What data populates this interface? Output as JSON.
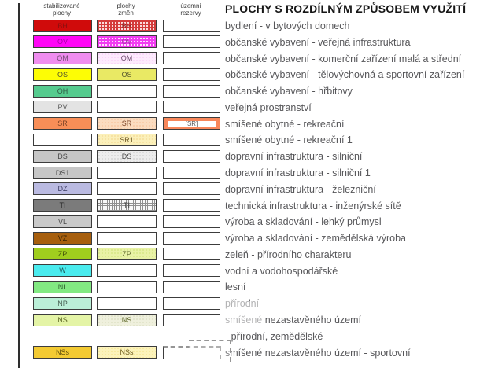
{
  "title": "PLOCHY S ROZDÍLNÝM ZPŮSOBEM VYUŽITÍ",
  "columns": [
    {
      "line1": "stabilizované",
      "line2": "plochy"
    },
    {
      "line1": "plochy",
      "line2": "změn"
    },
    {
      "line1": "územní",
      "line2": "rezervy"
    }
  ],
  "colors": {
    "border": "#3c3c3c",
    "text": "#57575a",
    "title": "#161616"
  },
  "rows": [
    {
      "code": "BH",
      "text": "bydlení - v bytových domech",
      "stable": {
        "fill": "#d00b0b",
        "label": "BH",
        "label_color": "#8b0f0f"
      },
      "change": {
        "kind": "hatch",
        "base": "#fadcdc",
        "accent": "#d43c3c",
        "line": 2,
        "period": 4,
        "label": "BH",
        "label_color": "#7c1d1d"
      },
      "reserve": {
        "kind": "plain"
      }
    },
    {
      "code": "OV",
      "text": "občanské vybavení - veřejná infrastruktura",
      "stable": {
        "fill": "#ff06f6",
        "label": "OV",
        "label_color": "#a800a8"
      },
      "change": {
        "kind": "hatch",
        "base": "#fde2fd",
        "accent": "#f23cf2",
        "line": 2,
        "period": 4,
        "label": "OV",
        "label_color": "#a23ca2"
      },
      "reserve": {
        "kind": "plain"
      }
    },
    {
      "code": "OM",
      "text": "občanské vybavení - komerční zařízení malá a střední",
      "stable": {
        "fill": "#ef8def",
        "label": "OM",
        "label_color": "#6e4a6e"
      },
      "change": {
        "kind": "dots",
        "base": "#fdeafd",
        "accent": "#f1a6f1",
        "label": "OM",
        "label_color": "#6e4a6e"
      },
      "reserve": {
        "kind": "plain"
      }
    },
    {
      "code": "OS",
      "text": "občanské vybavení - tělovýchovná a sportovní zařízení",
      "stable": {
        "fill": "#fdfd05",
        "label": "OS",
        "label_color": "#55552e"
      },
      "change": {
        "kind": "solid",
        "base": "#e9e964",
        "label": "OS",
        "label_color": "#55552e"
      },
      "reserve": {
        "kind": "plain"
      }
    },
    {
      "code": "OH",
      "text": "občanské vybavení - hřbitovy",
      "stable": {
        "fill": "#55cb8e",
        "label": "OH",
        "label_color": "#2e5a44"
      },
      "change": {
        "kind": "none"
      },
      "reserve": {
        "kind": "plain"
      }
    },
    {
      "code": "PV",
      "text": "veřejná prostranství",
      "stable": {
        "fill": "#e3e3e3",
        "label": "PV",
        "label_color": "#5a5a5a"
      },
      "change": {
        "kind": "none"
      },
      "reserve": {
        "kind": "plain"
      }
    },
    {
      "code": "SR",
      "text": "smíšené obytné - rekreační",
      "stable": {
        "fill": "#f88e57",
        "label": "SR",
        "label_color": "#7c4326"
      },
      "change": {
        "kind": "dots",
        "base": "#fbdcc0",
        "accent": "#f4a671",
        "label": "SR",
        "label_color": "#7c4326"
      },
      "reserve": {
        "kind": "sr",
        "fill": "#f8875a",
        "label": "[SR]"
      }
    },
    {
      "code": "SR1",
      "text": "smíšené obytné - rekreační 1",
      "stable": {
        "fill": "#ffffff"
      },
      "change": {
        "kind": "dots",
        "base": "#fbf0ba",
        "accent": "#eec066",
        "label": "SR1",
        "label_color": "#6e5a28"
      },
      "reserve": {
        "kind": "plain"
      }
    },
    {
      "code": "DS",
      "text": "dopravní infrastruktura - silniční",
      "stable": {
        "fill": "#c6c6c6",
        "label": "DS",
        "label_color": "#4a4a4a"
      },
      "change": {
        "kind": "dots",
        "base": "#ececec",
        "accent": "#ababab",
        "label": "DS",
        "label_color": "#4a4a4a"
      },
      "reserve": {
        "kind": "plain"
      }
    },
    {
      "code": "DS1",
      "text": "dopravní infrastruktura - silniční 1",
      "stable": {
        "fill": "#c6c6c6",
        "label": "DS1",
        "label_color": "#4a4a4a"
      },
      "change": {
        "kind": "none"
      },
      "reserve": {
        "kind": "plain"
      }
    },
    {
      "code": "DZ",
      "text": "dopravní infrastruktura - železniční",
      "stable": {
        "fill": "#babae1",
        "label": "DZ",
        "label_color": "#3c3c64"
      },
      "change": {
        "kind": "none"
      },
      "reserve": {
        "kind": "plain"
      }
    },
    {
      "code": "TI",
      "text": "technická infrastruktura - inženýrské sítě",
      "stable": {
        "fill": "#7b7b7b",
        "label": "TI",
        "label_color": "#262626"
      },
      "change": {
        "kind": "hatch",
        "base": "#f8f8f8",
        "accent": "#8f8f8f",
        "line": 1,
        "period": 3,
        "label": "TI",
        "label_color": "#3c3c3c"
      },
      "reserve": {
        "kind": "plain"
      }
    },
    {
      "code": "VL",
      "text": "výroba a skladování - lehký průmysl",
      "stable": {
        "fill": "#c9c9c9",
        "label": "VL",
        "label_color": "#4a4a4a"
      },
      "change": {
        "kind": "none"
      },
      "reserve": {
        "kind": "plain"
      }
    },
    {
      "code": "VZ",
      "text": "výroba a skladování - zemědělská výroba",
      "stable": {
        "fill": "#a75f0e",
        "label": "VZ",
        "label_color": "#3a2302"
      },
      "change": {
        "kind": "none"
      },
      "reserve": {
        "kind": "plain"
      }
    },
    {
      "code": "ZP",
      "text": "zeleň - přírodního charakteru",
      "stable": {
        "fill": "#a0ce1e",
        "label": "ZP",
        "label_color": "#42520a"
      },
      "change": {
        "kind": "dots",
        "base": "#e9f2a6",
        "accent": "#b8d44e",
        "label": "ZP",
        "label_color": "#5a6428"
      },
      "reserve": {
        "kind": "plain"
      }
    },
    {
      "code": "W",
      "text": "vodní a vodohospodářské",
      "stable": {
        "fill": "#4aebee",
        "label": "W",
        "label_color": "#1e5a5c"
      },
      "change": {
        "kind": "none"
      },
      "reserve": {
        "kind": "plain"
      }
    },
    {
      "code": "NL",
      "text": "lesní",
      "stable": {
        "fill": "#82e982",
        "label": "NL",
        "label_color": "#2c5a2c"
      },
      "change": {
        "kind": "none"
      },
      "reserve": {
        "kind": "plain"
      }
    },
    {
      "code": "NP",
      "text": "přírodní",
      "stable": {
        "fill": "#bbefd8",
        "label": "NP",
        "label_color": "#4a6456"
      },
      "change": {
        "kind": "none"
      },
      "reserve": {
        "kind": "plain"
      }
    },
    {
      "code": "NS",
      "text": "smíšené nezastavěného území",
      "stable": {
        "fill": "#e4f4a6",
        "label": "NS",
        "label_color": "#56601e"
      },
      "change": {
        "kind": "dots",
        "base": "#eff0dd",
        "accent": "#c2c89e",
        "label": "NS",
        "label_color": "#56601e"
      },
      "reserve": {
        "kind": "plain"
      }
    },
    {
      "type": "textline",
      "text": "- přírodní, zemědělské"
    },
    {
      "code": "NSs",
      "text": "smíšené nezastavěného území - sportovní",
      "stable": {
        "fill": "#f3ca33",
        "label": "NSs",
        "label_color": "#5c4a0a"
      },
      "change": {
        "kind": "dots",
        "base": "#fcf3bb",
        "accent": "#eace52",
        "label": "NSs",
        "label_color": "#6e5c1e"
      },
      "reserve": {
        "kind": "dashed"
      }
    }
  ]
}
